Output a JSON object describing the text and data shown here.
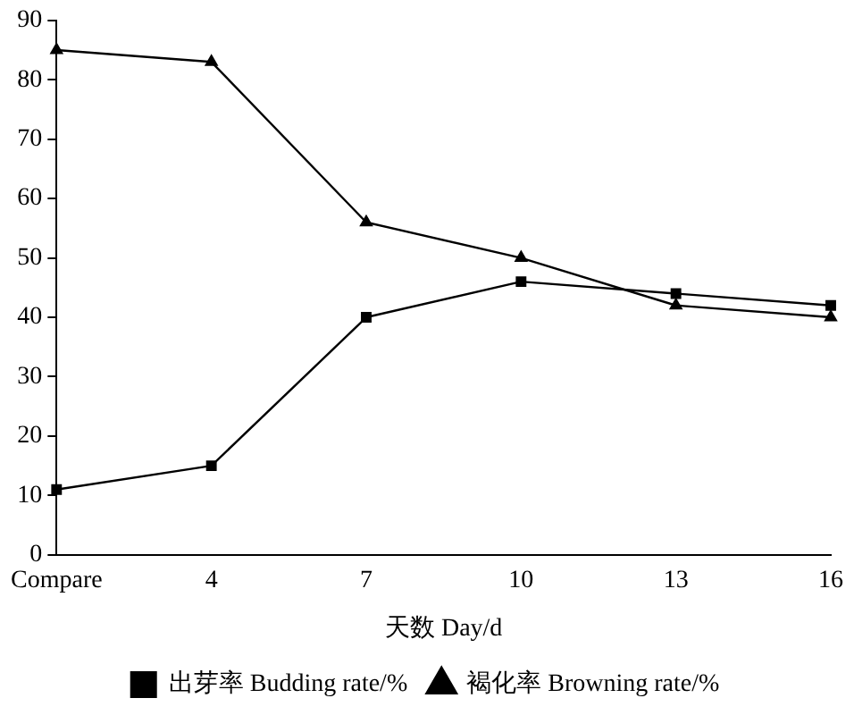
{
  "chart_data": {
    "type": "line",
    "xlabel": "天数 Day/d",
    "categories": [
      "Compare",
      "4",
      "7",
      "10",
      "13",
      "16"
    ],
    "series": [
      {
        "name": "出芽率 Budding rate/%",
        "color": "#000000",
        "marker": "square",
        "values": [
          11,
          15,
          40,
          46,
          44,
          42
        ]
      },
      {
        "name": "褐化率 Browning rate/%",
        "color": "#000000",
        "marker": "triangle",
        "values": [
          85,
          83,
          56,
          50,
          42,
          40
        ]
      }
    ],
    "ylim": [
      0,
      90
    ],
    "yticks": [
      0,
      10,
      20,
      30,
      40,
      50,
      60,
      70,
      80,
      90
    ],
    "grid": false,
    "legend": "bottom",
    "line_style": "solid"
  }
}
